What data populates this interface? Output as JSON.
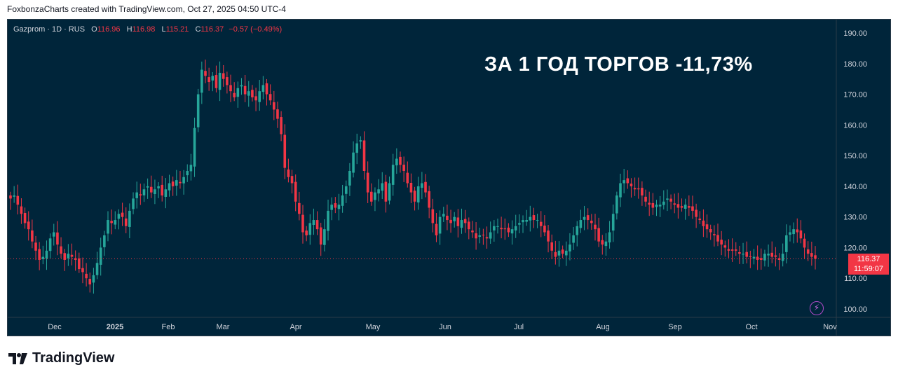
{
  "header": {
    "attribution": "FoxbonzaCharts created with TradingView.com, Oct 27, 2025 04:50 UTC-4"
  },
  "legend": {
    "symbol": "Gazprom · 1D · RUS",
    "o_label": "O",
    "o_value": "116.96",
    "h_label": "H",
    "h_value": "116.98",
    "l_label": "L",
    "l_value": "115.21",
    "c_label": "C",
    "c_value": "116.37",
    "change": "−0.57 (−0.49%)"
  },
  "headline": "ЗА 1 ГОД ТОРГОВ -11,73%",
  "price_tag": {
    "price": "116.37",
    "countdown": "11:59:07"
  },
  "footer": {
    "brand": "TradingView"
  },
  "icons": {
    "logo": "tradingview-logo-icon",
    "alert": "lightning-icon"
  },
  "colors": {
    "background": "#00253a",
    "up": "#26a69a",
    "down": "#f23645",
    "text": "#d1d4dc"
  },
  "chart_data": {
    "type": "candlestick",
    "y_ticks": [
      "190.00",
      "180.00",
      "170.00",
      "160.00",
      "150.00",
      "140.00",
      "130.00",
      "120.00",
      "110.00",
      "100.00"
    ],
    "x_ticks": [
      "Dec",
      "2025",
      "Feb",
      "Mar",
      "Apr",
      "May",
      "Jun",
      "Jul",
      "Aug",
      "Sep",
      "Oct",
      "Nov"
    ],
    "ylim": [
      95,
      193
    ],
    "last_close": 116.37,
    "close_series": [
      136,
      137,
      134,
      131,
      128,
      126,
      122,
      119,
      116,
      117,
      119,
      123,
      125,
      121,
      118,
      116,
      118,
      117,
      116,
      113,
      112,
      110,
      108,
      111,
      115,
      120,
      124,
      129,
      128,
      129,
      131,
      130,
      127,
      132,
      136,
      138,
      137,
      139,
      140,
      138,
      139,
      140,
      137,
      139,
      141,
      140,
      142,
      141,
      143,
      145,
      147,
      159,
      170,
      178,
      176,
      174,
      176,
      172,
      177,
      175,
      173,
      171,
      169,
      172,
      173,
      170,
      171,
      169,
      168,
      171,
      173,
      170,
      168,
      165,
      162,
      157,
      146,
      143,
      141,
      135,
      131,
      125,
      124,
      128,
      129,
      126,
      121,
      126,
      132,
      134,
      133,
      134,
      137,
      140,
      145,
      151,
      154,
      155,
      145,
      138,
      135,
      138,
      139,
      141,
      135,
      141,
      147,
      149,
      147,
      145,
      141,
      138,
      135,
      140,
      141,
      138,
      133,
      128,
      124,
      130,
      131,
      129,
      128,
      130,
      127,
      129,
      128,
      126,
      125,
      123,
      124,
      124,
      123,
      125,
      127,
      127,
      126,
      126,
      125,
      126,
      127,
      128,
      129,
      129,
      130,
      129,
      129,
      127,
      125,
      122,
      119,
      117,
      119,
      118,
      119,
      121,
      124,
      127,
      129,
      130,
      129,
      128,
      126,
      122,
      121,
      122,
      125,
      131,
      137,
      141,
      142,
      141,
      140,
      139,
      139,
      137,
      135,
      134,
      133,
      134,
      134,
      135,
      136,
      135,
      134,
      133,
      133,
      134,
      133,
      132,
      130,
      129,
      127,
      126,
      125,
      124,
      122,
      121,
      120,
      119,
      119,
      119,
      118,
      118,
      117,
      117,
      117,
      116,
      116,
      118,
      118,
      117,
      117,
      116,
      118,
      124,
      125,
      126,
      125,
      123,
      120,
      118,
      117,
      116.37
    ]
  }
}
